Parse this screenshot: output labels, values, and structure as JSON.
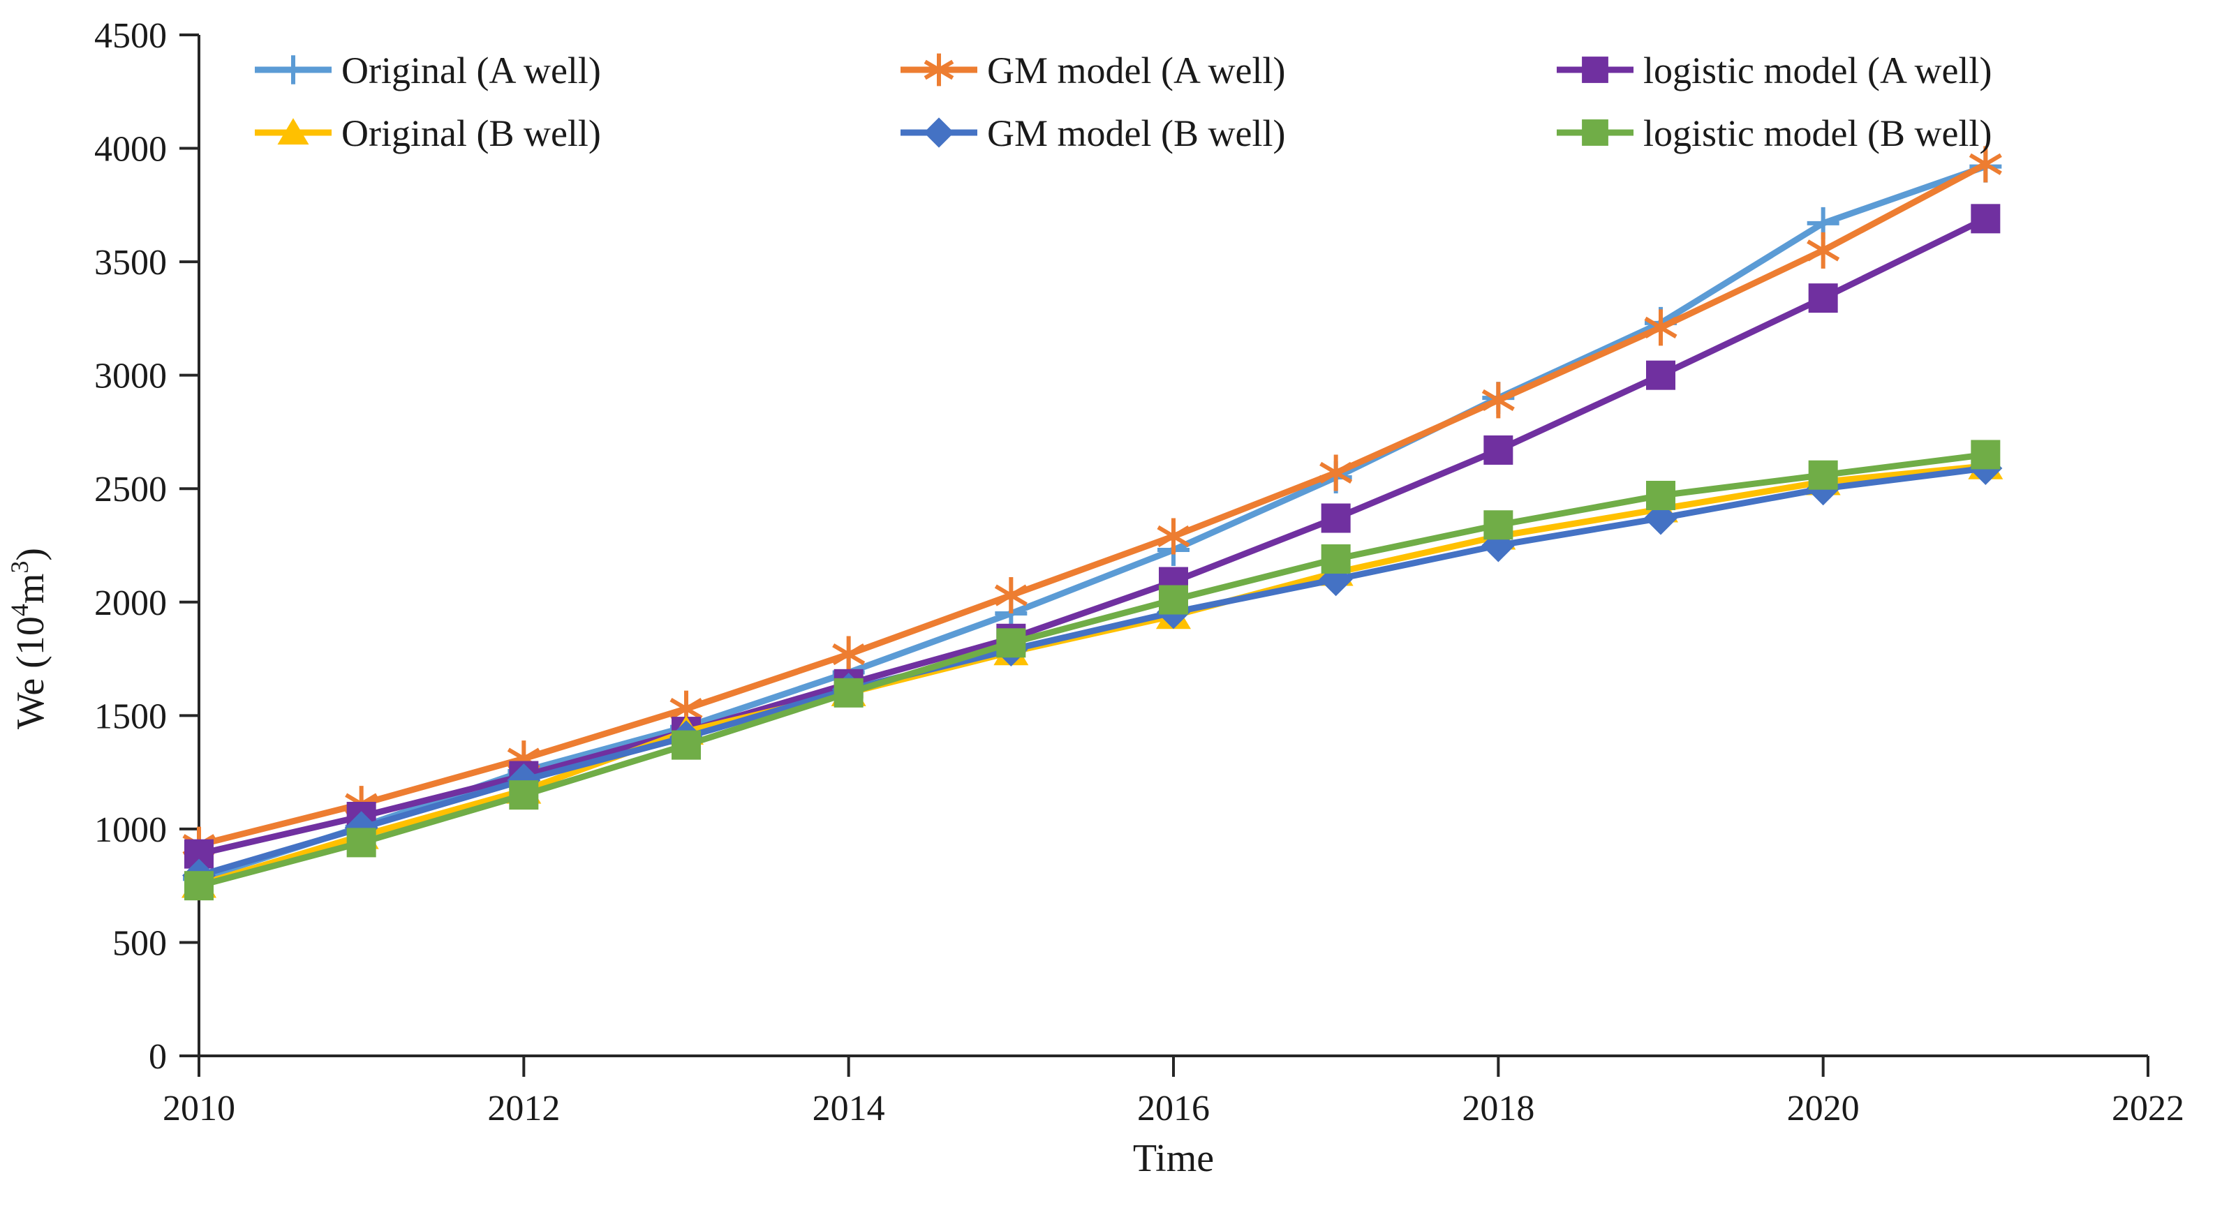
{
  "figure": {
    "background": "#ffffff",
    "text_color": "#1a1a1a",
    "axis_color": "#262626"
  },
  "chart_data": {
    "type": "line",
    "title": "",
    "xlabel": "Time",
    "ylabel": "We (10⁴m³)",
    "ylabel_parts": {
      "prefix": "We (10",
      "sup1": "4",
      "mid": "m",
      "sup2": "3",
      "suffix": ")"
    },
    "xlim": [
      2010,
      2022
    ],
    "ylim": [
      0,
      4500
    ],
    "xticks": [
      2010,
      2012,
      2014,
      2016,
      2018,
      2020,
      2022
    ],
    "yticks": [
      0,
      500,
      1000,
      1500,
      2000,
      2500,
      3000,
      3500,
      4000,
      4500
    ],
    "grid": false,
    "legend_position": "top-inside",
    "x": [
      2010,
      2011,
      2012,
      2013,
      2014,
      2015,
      2016,
      2017,
      2018,
      2019,
      2020,
      2021
    ],
    "series": [
      {
        "name": "Original (A well)",
        "color": "#5B9BD5",
        "marker": "plus",
        "values": [
          780,
          1010,
          1255,
          1450,
          1690,
          1950,
          2230,
          2550,
          2900,
          3230,
          3670,
          3920
        ]
      },
      {
        "name": "GM model (A well)",
        "color": "#ED7D31",
        "marker": "asterisk",
        "values": [
          930,
          1110,
          1310,
          1530,
          1770,
          2030,
          2290,
          2570,
          2890,
          3210,
          3550,
          3930
        ]
      },
      {
        "name": "logistic model (A well)",
        "color": "#7030A0",
        "marker": "square",
        "values": [
          890,
          1055,
          1235,
          1430,
          1640,
          1840,
          2090,
          2370,
          2670,
          3000,
          3340,
          3690
        ]
      },
      {
        "name": "Original (B well)",
        "color": "#FFC000",
        "marker": "triangle",
        "values": [
          755,
          970,
          1170,
          1430,
          1600,
          1780,
          1940,
          2130,
          2290,
          2410,
          2530,
          2600
        ]
      },
      {
        "name": "GM model (B well)",
        "color": "#4472C4",
        "marker": "diamond",
        "values": [
          795,
          1005,
          1215,
          1405,
          1615,
          1790,
          1955,
          2100,
          2250,
          2370,
          2500,
          2590
        ]
      },
      {
        "name": "logistic model (B well)",
        "color": "#70AD47",
        "marker": "square",
        "values": [
          750,
          940,
          1150,
          1370,
          1600,
          1820,
          2010,
          2190,
          2340,
          2470,
          2560,
          2650
        ]
      }
    ],
    "legend_rows": [
      [
        0,
        1,
        2
      ],
      [
        3,
        4,
        5
      ]
    ]
  }
}
